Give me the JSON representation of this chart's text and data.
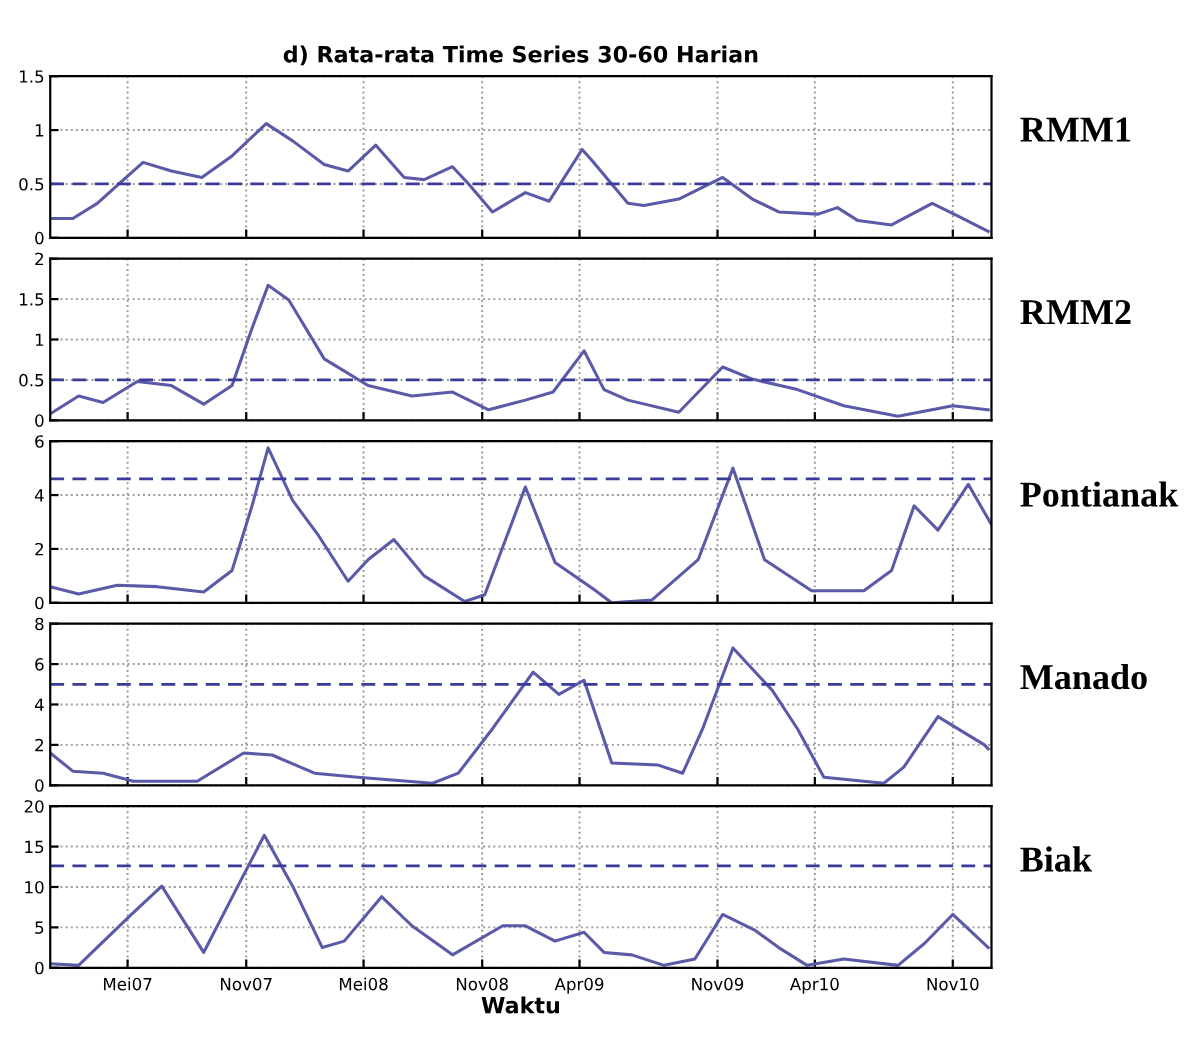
{
  "chart_data": [
    {
      "type": "line",
      "title": "d) Rata-rata Time Series 30-60 Harian",
      "tick_labels": "y",
      "grid": true,
      "line_style": "solid",
      "xlim": [
        "2007-01-01",
        "2010-12-31"
      ],
      "ylim": [
        0,
        1.5
      ],
      "yticks": [
        0,
        0.5,
        1,
        1.5
      ],
      "ref_lines": [
        {
          "axis": "y",
          "value": 0.5,
          "color": "#3a3a9a",
          "line_style": "dashed"
        }
      ],
      "series": [
        {
          "name": "RMM1",
          "color": "#5a5aa8",
          "x": [
            "2007-01-01",
            "2007-02-05",
            "2007-03-15",
            "2007-04-21",
            "2007-05-25",
            "2007-07-08",
            "2007-08-24",
            "2007-10-10",
            "2007-12-02",
            "2008-01-12",
            "2008-03-01",
            "2008-04-07",
            "2008-05-20",
            "2008-07-03",
            "2008-08-03",
            "2008-09-16",
            "2008-10-11",
            "2008-11-17",
            "2009-01-07",
            "2009-02-13",
            "2009-04-05",
            "2009-04-20",
            "2009-06-15",
            "2009-07-10",
            "2009-09-02",
            "2009-11-09",
            "2009-12-25",
            "2010-02-04",
            "2010-04-06",
            "2010-05-06",
            "2010-06-07",
            "2010-07-29",
            "2010-09-30",
            "2010-11-10",
            "2010-12-26"
          ],
          "values": [
            0.18,
            0.18,
            0.32,
            0.52,
            0.7,
            0.62,
            0.56,
            0.76,
            1.06,
            0.9,
            0.68,
            0.62,
            0.86,
            0.56,
            0.54,
            0.66,
            0.5,
            0.24,
            0.42,
            0.34,
            0.82,
            0.72,
            0.32,
            0.3,
            0.36,
            0.56,
            0.36,
            0.24,
            0.22,
            0.28,
            0.16,
            0.12,
            0.32,
            0.2,
            0.06
          ]
        }
      ]
    },
    {
      "type": "line",
      "tick_labels": "y",
      "grid": true,
      "line_style": "solid",
      "xlim": [
        "2007-01-01",
        "2010-12-31"
      ],
      "ylim": [
        0,
        2
      ],
      "yticks": [
        0,
        0.5,
        1,
        1.5,
        2
      ],
      "ref_lines": [
        {
          "axis": "y",
          "value": 0.5,
          "color": "#3a3a9a",
          "line_style": "dashed"
        }
      ],
      "series": [
        {
          "name": "RMM2",
          "color": "#5a5aa8",
          "x": [
            "2007-01-01",
            "2007-02-14",
            "2007-03-24",
            "2007-05-16",
            "2007-07-08",
            "2007-08-27",
            "2007-10-10",
            "2007-11-10",
            "2007-12-05",
            "2008-01-06",
            "2008-03-01",
            "2008-05-08",
            "2008-07-15",
            "2008-09-16",
            "2008-11-11",
            "2009-01-07",
            "2009-02-19",
            "2009-04-08",
            "2009-05-09",
            "2009-06-15",
            "2009-09-02",
            "2009-11-09",
            "2009-12-25",
            "2010-03-05",
            "2010-05-16",
            "2010-08-08",
            "2010-11-01",
            "2010-12-26"
          ],
          "values": [
            0.08,
            0.3,
            0.22,
            0.48,
            0.43,
            0.2,
            0.43,
            1.14,
            1.67,
            1.49,
            0.76,
            0.43,
            0.3,
            0.35,
            0.13,
            0.25,
            0.35,
            0.86,
            0.38,
            0.25,
            0.1,
            0.66,
            0.51,
            0.38,
            0.18,
            0.05,
            0.18,
            0.13
          ]
        }
      ]
    },
    {
      "type": "line",
      "tick_labels": "y",
      "grid": true,
      "line_style": "solid",
      "xlim": [
        "2007-01-01",
        "2010-12-31"
      ],
      "ylim": [
        0,
        6
      ],
      "yticks": [
        0,
        2,
        4,
        6
      ],
      "ref_lines": [
        {
          "axis": "y",
          "value": 4.6,
          "color": "#3a3a9a",
          "line_style": "dashed"
        }
      ],
      "series": [
        {
          "name": "Pontianak",
          "color": "#5a5aa8",
          "x": [
            "2007-01-01",
            "2007-02-14",
            "2007-04-15",
            "2007-06-16",
            "2007-08-27",
            "2007-10-10",
            "2007-11-10",
            "2007-12-05",
            "2008-01-12",
            "2008-02-21",
            "2008-04-07",
            "2008-05-08",
            "2008-06-17",
            "2008-08-03",
            "2008-10-05",
            "2008-11-05",
            "2009-01-07",
            "2009-02-22",
            "2009-04-23",
            "2009-05-21",
            "2009-07-22",
            "2009-10-02",
            "2009-11-25",
            "2010-01-13",
            "2010-03-27",
            "2010-06-16",
            "2010-07-29",
            "2010-09-02",
            "2010-10-09",
            "2010-11-25",
            "2010-12-31"
          ],
          "values": [
            0.6,
            0.33,
            0.65,
            0.6,
            0.4,
            1.2,
            3.6,
            5.75,
            3.8,
            2.5,
            0.8,
            1.6,
            2.35,
            1.0,
            0.05,
            0.3,
            4.3,
            1.5,
            0.5,
            0.0,
            0.1,
            1.6,
            5.0,
            1.6,
            0.45,
            0.45,
            1.2,
            3.6,
            2.7,
            4.4,
            2.9
          ]
        }
      ]
    },
    {
      "type": "line",
      "tick_labels": "y",
      "grid": true,
      "line_style": "solid",
      "xlim": [
        "2007-01-01",
        "2010-12-31"
      ],
      "ylim": [
        0,
        8
      ],
      "yticks": [
        0,
        2,
        4,
        6,
        8
      ],
      "ref_lines": [
        {
          "axis": "y",
          "value": 5,
          "color": "#3a3a9a",
          "line_style": "dashed"
        }
      ],
      "series": [
        {
          "name": "Manado",
          "color": "#5a5aa8",
          "x": [
            "2007-01-01",
            "2007-02-05",
            "2007-03-24",
            "2007-05-10",
            "2007-08-17",
            "2007-10-28",
            "2007-12-11",
            "2008-02-15",
            "2008-04-22",
            "2008-08-16",
            "2008-09-25",
            "2008-11-17",
            "2009-01-19",
            "2009-02-28",
            "2009-04-08",
            "2009-05-21",
            "2009-08-01",
            "2009-09-08",
            "2009-10-09",
            "2009-11-25",
            "2010-01-25",
            "2010-03-05",
            "2010-04-15",
            "2010-07-17",
            "2010-08-17",
            "2010-10-09",
            "2010-12-20",
            "2010-12-26"
          ],
          "values": [
            1.6,
            0.7,
            0.6,
            0.2,
            0.2,
            1.6,
            1.5,
            0.6,
            0.4,
            0.1,
            0.6,
            2.8,
            5.6,
            4.5,
            5.2,
            1.1,
            1.0,
            0.6,
            2.8,
            6.8,
            4.7,
            2.8,
            0.4,
            0.1,
            0.9,
            3.4,
            2.0,
            1.8
          ]
        }
      ]
    },
    {
      "type": "line",
      "xlabel": "Waktu",
      "grid": true,
      "line_style": "solid",
      "xlim": [
        "2007-01-01",
        "2010-12-31"
      ],
      "xticks": [
        {
          "value": "2007-05-01",
          "label": "Mei07"
        },
        {
          "value": "2007-11-01",
          "label": "Nov07"
        },
        {
          "value": "2008-05-01",
          "label": "Mei08"
        },
        {
          "value": "2008-11-01",
          "label": "Nov08"
        },
        {
          "value": "2009-04-01",
          "label": "Apr09"
        },
        {
          "value": "2009-11-01",
          "label": "Nov09"
        },
        {
          "value": "2010-04-01",
          "label": "Apr10"
        },
        {
          "value": "2010-11-01",
          "label": "Nov10"
        }
      ],
      "ylim": [
        0,
        20
      ],
      "yticks": [
        0,
        5,
        10,
        15,
        20
      ],
      "ref_lines": [
        {
          "axis": "y",
          "value": 12.6,
          "color": "#3a3a9a",
          "line_style": "dashed"
        }
      ],
      "series": [
        {
          "name": "Biak",
          "color": "#5a5aa8",
          "x": [
            "2007-01-01",
            "2007-02-14",
            "2007-05-07",
            "2007-06-23",
            "2007-08-27",
            "2007-10-19",
            "2007-11-29",
            "2008-01-12",
            "2008-02-27",
            "2008-04-01",
            "2008-05-29",
            "2008-07-15",
            "2008-09-16",
            "2008-12-03",
            "2009-01-07",
            "2009-02-22",
            "2009-04-08",
            "2009-05-09",
            "2009-06-21",
            "2009-08-10",
            "2009-09-27",
            "2009-11-09",
            "2009-12-28",
            "2010-02-04",
            "2010-03-20",
            "2010-05-16",
            "2010-08-08",
            "2010-09-18",
            "2010-11-01",
            "2010-12-26"
          ],
          "values": [
            0.5,
            0.3,
            6.6,
            10.1,
            1.9,
            10.1,
            16.4,
            10.1,
            2.5,
            3.3,
            8.8,
            5.2,
            1.6,
            5.2,
            5.2,
            3.3,
            4.4,
            1.9,
            1.6,
            0.3,
            1.1,
            6.6,
            4.7,
            2.5,
            0.3,
            1.1,
            0.3,
            3.0,
            6.6,
            2.5
          ]
        }
      ]
    }
  ]
}
